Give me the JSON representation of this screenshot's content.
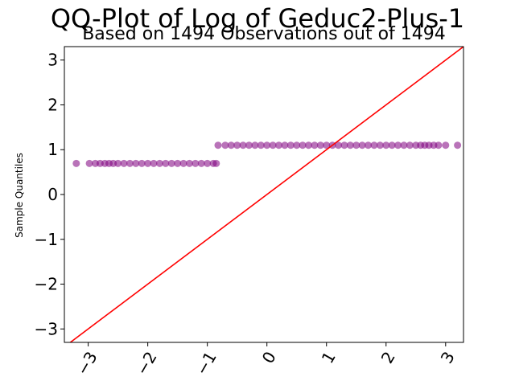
{
  "chart_data": {
    "type": "scatter",
    "title": "QQ-Plot of Log of Geduc2-Plus-1",
    "subtitle": "Based on 1494 Observations out of 1494",
    "xlabel": "",
    "ylabel": "Sample Quantiles",
    "xlim": [
      -3.4,
      3.3
    ],
    "ylim": [
      -3.3,
      3.3
    ],
    "xticks": [
      "−3",
      "−2",
      "−1",
      "0",
      "1",
      "2",
      "3"
    ],
    "xtick_values": [
      -3,
      -2,
      -1,
      0,
      1,
      2,
      3
    ],
    "yticks": [
      "−3",
      "−2",
      "−1",
      "0",
      "1",
      "2",
      "3"
    ],
    "ytick_values": [
      -3,
      -2,
      -1,
      0,
      1,
      2,
      3
    ],
    "grid": false,
    "marker_color": "#800080",
    "reference_line_color": "#ff0000",
    "reference_line": {
      "x": [
        -3.4,
        3.3
      ],
      "y": [
        -3.4,
        3.3
      ]
    },
    "series": [
      {
        "values_description_note": "",
        "x": [
          -3.2,
          -2.98,
          -2.88,
          -2.8,
          -2.72,
          -2.65,
          -2.58,
          -2.5,
          -2.4,
          -2.3,
          -2.2,
          -2.1,
          -2.0,
          -1.9,
          -1.8,
          -1.7,
          -1.6,
          -1.5,
          -1.4,
          -1.3,
          -1.2,
          -1.1,
          -1.0,
          -0.9,
          -0.85
        ],
        "y": [
          0.693,
          0.693,
          0.693,
          0.693,
          0.693,
          0.693,
          0.693,
          0.693,
          0.693,
          0.693,
          0.693,
          0.693,
          0.693,
          0.693,
          0.693,
          0.693,
          0.693,
          0.693,
          0.693,
          0.693,
          0.693,
          0.693,
          0.693,
          0.693,
          0.693
        ]
      },
      {
        "x": [
          -0.82,
          -0.7,
          -0.6,
          -0.5,
          -0.4,
          -0.3,
          -0.2,
          -0.1,
          0.0,
          0.1,
          0.2,
          0.3,
          0.4,
          0.5,
          0.6,
          0.7,
          0.8,
          0.9,
          1.0,
          1.1,
          1.2,
          1.3,
          1.4,
          1.5,
          1.6,
          1.7,
          1.8,
          1.9,
          2.0,
          2.1,
          2.2,
          2.3,
          2.4,
          2.5,
          2.58,
          2.65,
          2.72,
          2.8,
          2.88,
          3.0,
          3.2
        ],
        "y": [
          1.099,
          1.099,
          1.099,
          1.099,
          1.099,
          1.099,
          1.099,
          1.099,
          1.099,
          1.099,
          1.099,
          1.099,
          1.099,
          1.099,
          1.099,
          1.099,
          1.099,
          1.099,
          1.099,
          1.099,
          1.099,
          1.099,
          1.099,
          1.099,
          1.099,
          1.099,
          1.099,
          1.099,
          1.099,
          1.099,
          1.099,
          1.099,
          1.099,
          1.099,
          1.099,
          1.099,
          1.099,
          1.099,
          1.099,
          1.099,
          1.099
        ]
      }
    ]
  }
}
